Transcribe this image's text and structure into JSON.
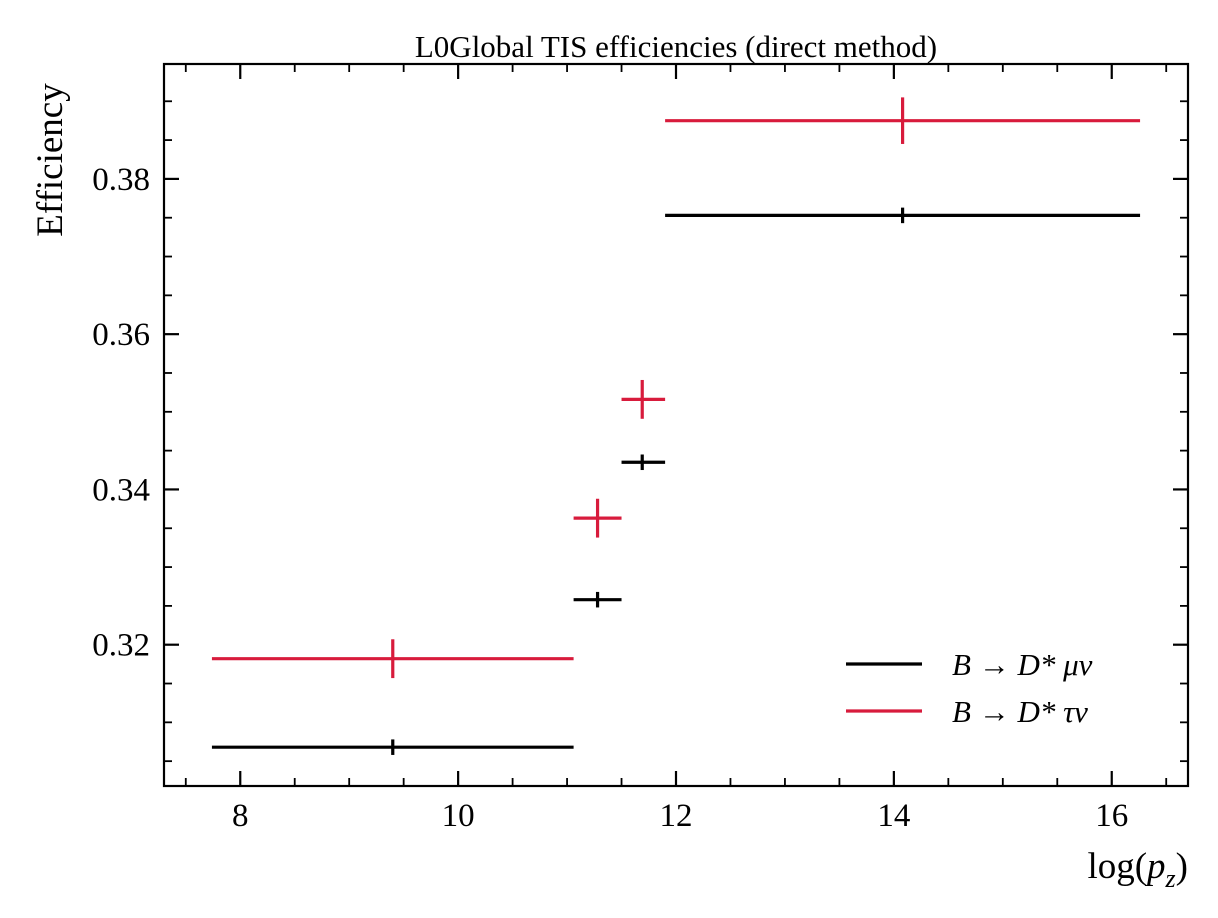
{
  "chart_data": {
    "type": "scatter",
    "title": "L0Global TIS efficiencies (direct method)",
    "xlabel": "log(",
    "xlabel_var": "p",
    "xlabel_sub": "z",
    "xlabel_close": ")",
    "ylabel": "Efficiency",
    "xlim": [
      7.3,
      16.7
    ],
    "ylim": [
      0.3018,
      0.3948
    ],
    "x_ticks": [
      8,
      10,
      12,
      14,
      16
    ],
    "x_tick_labels": [
      "8",
      "10",
      "12",
      "14",
      "16"
    ],
    "y_ticks": [
      0.32,
      0.34,
      0.36,
      0.38
    ],
    "y_tick_labels": [
      "0.32",
      "0.34",
      "0.36",
      "0.38"
    ],
    "x_minor_step": 0.5,
    "y_minor_step": 0.005,
    "ticks_direction": "in",
    "ticks_mirrored": true,
    "grid": false,
    "legend_position": "lower-right",
    "series": [
      {
        "name_parts": [
          "B",
          "→",
          "D*",
          "μν"
        ],
        "color": "#000000",
        "points": [
          {
            "x": 9.4,
            "x_low": 7.74,
            "x_high": 11.06,
            "y": 0.3068,
            "y_err": 0.001
          },
          {
            "x": 11.28,
            "x_low": 11.06,
            "x_high": 11.5,
            "y": 0.3258,
            "y_err": 0.001
          },
          {
            "x": 11.69,
            "x_low": 11.5,
            "x_high": 11.9,
            "y": 0.3435,
            "y_err": 0.001
          },
          {
            "x": 14.08,
            "x_low": 11.9,
            "x_high": 16.26,
            "y": 0.3753,
            "y_err": 0.001
          }
        ]
      },
      {
        "name_parts": [
          "B",
          "→",
          "D*",
          "τν"
        ],
        "color": "#d81b3c",
        "points": [
          {
            "x": 9.4,
            "x_low": 7.74,
            "x_high": 11.06,
            "y": 0.3182,
            "y_err": 0.0025
          },
          {
            "x": 11.28,
            "x_low": 11.06,
            "x_high": 11.5,
            "y": 0.3363,
            "y_err": 0.0025
          },
          {
            "x": 11.69,
            "x_low": 11.5,
            "x_high": 11.9,
            "y": 0.3516,
            "y_err": 0.0025
          },
          {
            "x": 14.08,
            "x_low": 11.9,
            "x_high": 16.26,
            "y": 0.3875,
            "y_err": 0.003
          }
        ]
      }
    ]
  }
}
